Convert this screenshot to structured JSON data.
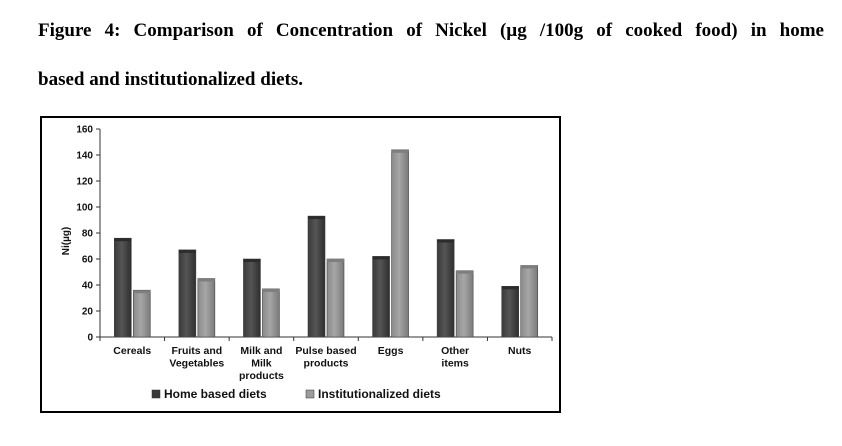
{
  "figure_caption": {
    "line1": "Figure 4: Comparison of Concentration of Nickel (µg /100g of cooked food) in home",
    "line2": "based and institutionalized diets."
  },
  "chart_data": {
    "type": "bar",
    "categories": [
      [
        "Cereals"
      ],
      [
        "Fruits and",
        "Vegetables"
      ],
      [
        "Milk and",
        "Milk",
        "products"
      ],
      [
        "Pulse based",
        "products"
      ],
      [
        "Eggs"
      ],
      [
        "Other",
        "items"
      ],
      [
        "Nuts"
      ]
    ],
    "series": [
      {
        "name": "Home based diets",
        "values": [
          76,
          67,
          60,
          93,
          62,
          75,
          39
        ],
        "color": "#555555"
      },
      {
        "name": "Institutionalized diets",
        "values": [
          36,
          45,
          37,
          60,
          144,
          51,
          55
        ],
        "color": "#a6a6a6"
      }
    ],
    "ylabel": "Ni(µg)",
    "ylim": [
      0,
      160
    ],
    "yticks": [
      0,
      20,
      40,
      60,
      80,
      100,
      120,
      140,
      160
    ],
    "grid": false,
    "legend_position": "bottom"
  }
}
